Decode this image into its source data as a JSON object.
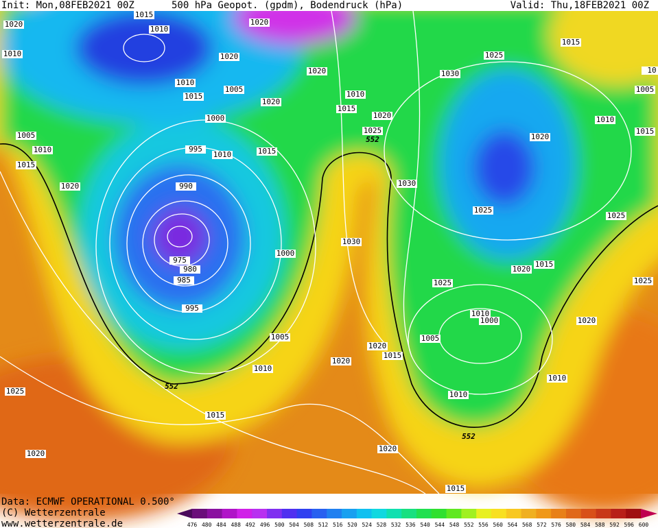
{
  "header": {
    "init": "Init: Mon,08FEB2021 00Z",
    "title": "500 hPa Geopot. (gpdm), Bodendruck (hPa)",
    "valid": "Valid: Thu,18FEB2021 00Z"
  },
  "footer": {
    "data": "Data: ECMWF OPERATIONAL 0.500°",
    "copyright": "(C) Wetterzentrale",
    "url": "www.wetterzentrale.de"
  },
  "colorbar": {
    "labels": [
      "476",
      "480",
      "484",
      "488",
      "492",
      "496",
      "500",
      "504",
      "508",
      "512",
      "516",
      "520",
      "524",
      "528",
      "532",
      "536",
      "540",
      "544",
      "548",
      "552",
      "556",
      "560",
      "564",
      "568",
      "572",
      "576",
      "580",
      "584",
      "588",
      "592",
      "596",
      "600"
    ],
    "colors": [
      "#4a0a5a",
      "#6a0e7a",
      "#8a10a0",
      "#b014c8",
      "#d020e8",
      "#b830f0",
      "#8030f0",
      "#5030f0",
      "#3040f0",
      "#2860f0",
      "#2080f0",
      "#18a0f0",
      "#10c0f0",
      "#10d8e0",
      "#10e0b0",
      "#18e080",
      "#20e050",
      "#30e030",
      "#60e820",
      "#a0f020",
      "#e8f020",
      "#f8e020",
      "#f8c820",
      "#f0b020",
      "#f09818",
      "#e88018",
      "#e06818",
      "#d85018",
      "#c83818",
      "#b82018",
      "#a01010",
      "#c00050"
    ]
  },
  "map": {
    "isobar_labels": [
      "1015",
      "1020",
      "1010",
      "1020",
      "1010",
      "1020",
      "1020",
      "1030",
      "1025",
      "1015",
      "1010",
      "1015",
      "1005",
      "1020",
      "1010",
      "1015",
      "1020",
      "1005",
      "1000",
      "1010",
      "1025",
      "1005",
      "1020",
      "1015",
      "1010",
      "995",
      "1010",
      "1015",
      "1015",
      "1030",
      "1020",
      "990",
      "1025",
      "1025",
      "1030",
      "1000",
      "975",
      "980",
      "985",
      "1025",
      "1020",
      "1015",
      "1025",
      "995",
      "1010",
      "1000",
      "1020",
      "1005",
      "1005",
      "1020",
      "1015",
      "1020",
      "1010",
      "1010",
      "1010",
      "1025",
      "1015",
      "1020",
      "1020",
      "1015",
      "10"
    ],
    "contour_labels": [
      "552",
      "552",
      "552"
    ]
  }
}
